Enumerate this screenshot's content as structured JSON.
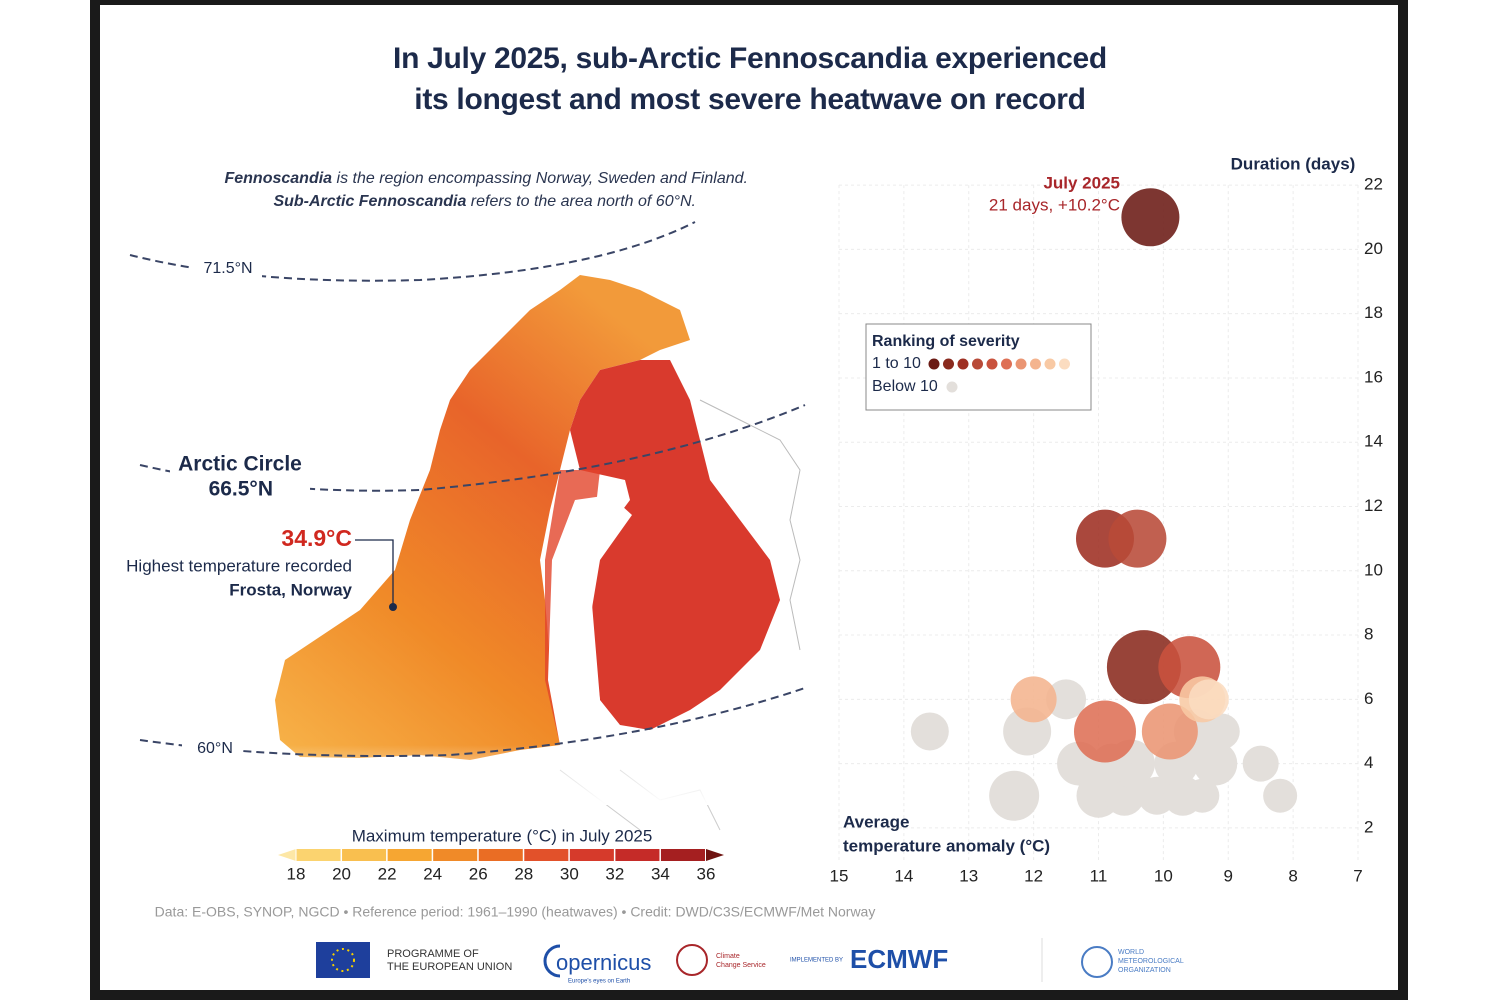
{
  "header": {
    "title_lines": [
      "In July 2025, sub-Arctic Fennoscandia experienced",
      "its longest and most severe heatwave on record"
    ]
  },
  "map": {
    "note": [
      {
        "bold": "Fennoscandia",
        "text": " is the region encompassing Norway, Sweden and Finland."
      },
      {
        "bold": "Sub-Arctic Fennoscandia",
        "text": " refers to the area north of 60°N."
      }
    ],
    "labels": {
      "lat_71": "71.5°N",
      "arctic_circle": "Arctic Circle",
      "arctic_lat": "66.5°N",
      "lat_60": "60°N",
      "max_temp": "34.9°C",
      "max_temp_desc": "Highest temperature recorded",
      "max_temp_place": "Frosta, Norway"
    },
    "colorbar": {
      "title": "Maximum temperature (°C) in July 2025",
      "ticks": [
        18,
        20,
        22,
        24,
        26,
        28,
        30,
        32,
        34,
        36
      ],
      "colors": [
        "#fde7a6",
        "#fbd36f",
        "#f9bf4f",
        "#f6a632",
        "#f08a28",
        "#ea6d24",
        "#e2512a",
        "#d63a2b",
        "#c52b28",
        "#a51f20",
        "#6f1411"
      ]
    }
  },
  "chart_data": {
    "type": "bubble",
    "ylabel": "Duration (days)",
    "xlabel_lines": [
      "Average",
      "temperature anomaly (°C)"
    ],
    "xlim": [
      15,
      7
    ],
    "xticks": [
      15,
      14,
      13,
      12,
      11,
      10,
      9,
      8,
      7
    ],
    "ylim": [
      1,
      23
    ],
    "yticks": [
      2,
      4,
      6,
      8,
      10,
      12,
      14,
      16,
      18,
      20,
      22
    ],
    "grid": true,
    "annotation": {
      "title": "July 2025",
      "text": "21 days, +10.2°C"
    },
    "legend_title": "Ranking of severity",
    "series": [
      {
        "name": "Below 10",
        "color": "#e3dfdb",
        "x": [
          13.6,
          11.5,
          12.1,
          11.3,
          12.3,
          11.0,
          10.6,
          10.1,
          9.7,
          9.4,
          10.5,
          9.8,
          9.2,
          9.1,
          8.5,
          8.2,
          10.8,
          9.5
        ],
        "values": [
          5,
          6,
          5,
          4,
          3,
          3,
          3,
          3,
          3,
          3,
          4,
          4,
          4,
          5,
          4,
          3,
          4,
          5
        ],
        "sizes": [
          19,
          20,
          24,
          22,
          25,
          22,
          20,
          19,
          20,
          17,
          24,
          22,
          22,
          18,
          18,
          17,
          20,
          22
        ]
      },
      {
        "name": "1 to 10",
        "colors": [
          "#6b1a14",
          "#8a2a1e",
          "#9e2f22",
          "#b84a38",
          "#c9523d",
          "#de7055",
          "#ea9573",
          "#f4b48e",
          "#f8c9a4",
          "#fbdcc0"
        ],
        "x": [
          10.2,
          10.3,
          10.9,
          10.4,
          9.6,
          10.9,
          9.9,
          12.0,
          9.4,
          9.3
        ],
        "values": [
          21,
          7,
          11,
          11,
          7,
          5,
          5,
          6,
          6,
          6
        ],
        "sizes": [
          29,
          37,
          29,
          29,
          31,
          31,
          28,
          23,
          23,
          20
        ]
      }
    ]
  },
  "footer": {
    "source": "Data: E-OBS, SYNOP, NGCD • Reference period: 1961–1990 (heatwaves) • Credit: DWD/C3S/ECMWF/Met Norway",
    "eu": [
      "PROGRAMME OF",
      "THE EUROPEAN UNION"
    ],
    "copernicus": "opernicus",
    "copernicus_sub": "Europe's eyes on Earth",
    "c3s": [
      "Climate",
      "Change Service"
    ],
    "implemented": "IMPLEMENTED BY",
    "ecmwf": "ECMWF",
    "wmo": [
      "WORLD",
      "METEOROLOGICAL",
      "ORGANIZATION"
    ]
  }
}
